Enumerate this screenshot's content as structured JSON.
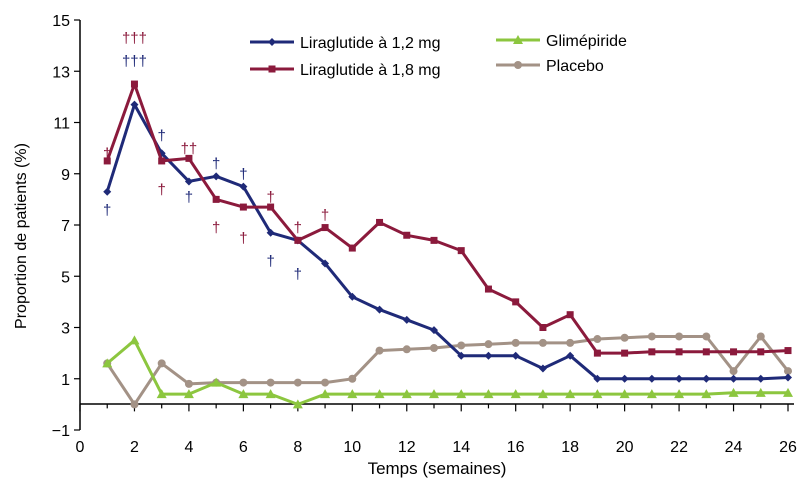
{
  "chart_data": {
    "type": "line",
    "xlabel": "Temps (semaines)",
    "ylabel": "Proportion de patients (%)",
    "xlim": [
      0,
      26
    ],
    "ylim": [
      -1,
      15
    ],
    "xticks": [
      "0",
      "2",
      "4",
      "6",
      "8",
      "10",
      "12",
      "14",
      "16",
      "18",
      "20",
      "22",
      "24",
      "26"
    ],
    "yticks": [
      "−1",
      "1",
      "3",
      "5",
      "7",
      "9",
      "11",
      "13",
      "15"
    ],
    "grid": false,
    "legend_placement": "top",
    "series": [
      {
        "name": "Liraglutide à 1,2 mg",
        "color": "#1f2a78",
        "marker": "diamond",
        "points": [
          [
            1,
            8.3
          ],
          [
            2,
            11.7
          ],
          [
            3,
            9.8
          ],
          [
            4,
            8.7
          ],
          [
            5,
            8.9
          ],
          [
            6,
            8.5
          ],
          [
            7,
            6.7
          ],
          [
            8,
            6.4
          ],
          [
            9,
            5.5
          ],
          [
            10,
            4.2
          ],
          [
            11,
            3.7
          ],
          [
            12,
            3.3
          ],
          [
            13,
            2.9
          ],
          [
            14,
            1.9
          ],
          [
            15,
            1.9
          ],
          [
            16,
            1.9
          ],
          [
            17,
            1.4
          ],
          [
            18,
            1.9
          ],
          [
            19,
            1.0
          ],
          [
            20,
            1.0
          ],
          [
            21,
            1.0
          ],
          [
            22,
            1.0
          ],
          [
            23,
            1.0
          ],
          [
            24,
            1.0
          ],
          [
            25,
            1.0
          ],
          [
            26,
            1.05
          ]
        ]
      },
      {
        "name": "Liraglutide à 1,8 mg",
        "color": "#8b1a3c",
        "marker": "square",
        "points": [
          [
            1,
            9.5
          ],
          [
            2,
            12.5
          ],
          [
            3,
            9.5
          ],
          [
            4,
            9.6
          ],
          [
            5,
            8.0
          ],
          [
            6,
            7.7
          ],
          [
            7,
            7.7
          ],
          [
            8,
            6.4
          ],
          [
            9,
            6.9
          ],
          [
            10,
            6.1
          ],
          [
            11,
            7.1
          ],
          [
            12,
            6.6
          ],
          [
            13,
            6.4
          ],
          [
            14,
            6.0
          ],
          [
            15,
            4.5
          ],
          [
            16,
            4.0
          ],
          [
            17,
            3.0
          ],
          [
            18,
            3.5
          ],
          [
            19,
            2.0
          ],
          [
            20,
            2.0
          ],
          [
            21,
            2.05
          ],
          [
            22,
            2.05
          ],
          [
            23,
            2.05
          ],
          [
            24,
            2.05
          ],
          [
            25,
            2.05
          ],
          [
            26,
            2.1
          ]
        ]
      },
      {
        "name": "Glimépiride",
        "color": "#8cc63f",
        "marker": "triangle",
        "points": [
          [
            1,
            1.6
          ],
          [
            2,
            2.5
          ],
          [
            3,
            0.4
          ],
          [
            4,
            0.4
          ],
          [
            5,
            0.85
          ],
          [
            6,
            0.4
          ],
          [
            7,
            0.4
          ],
          [
            8,
            0.0
          ],
          [
            9,
            0.4
          ],
          [
            10,
            0.4
          ],
          [
            11,
            0.4
          ],
          [
            12,
            0.4
          ],
          [
            13,
            0.4
          ],
          [
            14,
            0.4
          ],
          [
            15,
            0.4
          ],
          [
            16,
            0.4
          ],
          [
            17,
            0.4
          ],
          [
            18,
            0.4
          ],
          [
            19,
            0.4
          ],
          [
            20,
            0.4
          ],
          [
            21,
            0.4
          ],
          [
            22,
            0.4
          ],
          [
            23,
            0.4
          ],
          [
            24,
            0.45
          ],
          [
            25,
            0.45
          ],
          [
            26,
            0.45
          ]
        ]
      },
      {
        "name": "Placebo",
        "color": "#a39286",
        "marker": "circle",
        "points": [
          [
            1,
            1.6
          ],
          [
            2,
            0.0
          ],
          [
            3,
            1.6
          ],
          [
            4,
            0.8
          ],
          [
            5,
            0.85
          ],
          [
            6,
            0.85
          ],
          [
            7,
            0.85
          ],
          [
            8,
            0.85
          ],
          [
            9,
            0.85
          ],
          [
            10,
            1.0
          ],
          [
            11,
            2.1
          ],
          [
            12,
            2.15
          ],
          [
            13,
            2.2
          ],
          [
            14,
            2.3
          ],
          [
            15,
            2.35
          ],
          [
            16,
            2.4
          ],
          [
            17,
            2.4
          ],
          [
            18,
            2.4
          ],
          [
            19,
            2.55
          ],
          [
            20,
            2.6
          ],
          [
            21,
            2.65
          ],
          [
            22,
            2.65
          ],
          [
            23,
            2.65
          ],
          [
            24,
            1.3
          ],
          [
            25,
            2.65
          ],
          [
            26,
            1.3
          ]
        ]
      }
    ],
    "annotations": [
      {
        "text": "†",
        "x": 1,
        "y": 9.6,
        "color": "#8b1a3c"
      },
      {
        "text": "†",
        "x": 1,
        "y": 7.4,
        "color": "#1f2a78"
      },
      {
        "text": "†††",
        "x": 2,
        "y": 14.1,
        "color": "#8b1a3c"
      },
      {
        "text": "†††",
        "x": 2,
        "y": 13.2,
        "color": "#1f2a78"
      },
      {
        "text": "†",
        "x": 3,
        "y": 10.3,
        "color": "#1f2a78"
      },
      {
        "text": "†",
        "x": 3,
        "y": 8.2,
        "color": "#8b1a3c"
      },
      {
        "text": "††",
        "x": 4,
        "y": 9.8,
        "color": "#8b1a3c"
      },
      {
        "text": "†",
        "x": 4,
        "y": 7.9,
        "color": "#1f2a78"
      },
      {
        "text": "†",
        "x": 5,
        "y": 9.2,
        "color": "#1f2a78"
      },
      {
        "text": "†",
        "x": 5,
        "y": 6.7,
        "color": "#8b1a3c"
      },
      {
        "text": "†",
        "x": 6,
        "y": 8.8,
        "color": "#1f2a78"
      },
      {
        "text": "†",
        "x": 6,
        "y": 6.3,
        "color": "#8b1a3c"
      },
      {
        "text": "†",
        "x": 7,
        "y": 7.9,
        "color": "#8b1a3c"
      },
      {
        "text": "†",
        "x": 7,
        "y": 5.4,
        "color": "#1f2a78"
      },
      {
        "text": "†",
        "x": 8,
        "y": 6.7,
        "color": "#8b1a3c"
      },
      {
        "text": "†",
        "x": 8,
        "y": 4.9,
        "color": "#1f2a78"
      },
      {
        "text": "†",
        "x": 9,
        "y": 7.2,
        "color": "#8b1a3c"
      }
    ]
  }
}
